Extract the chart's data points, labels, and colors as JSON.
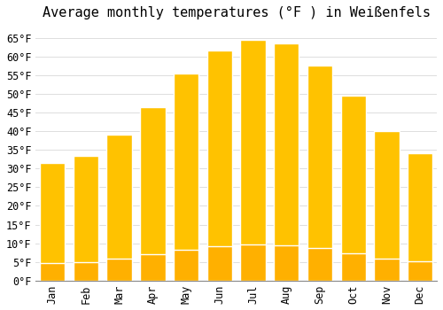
{
  "title": "Average monthly temperatures (°F ) in Weißenfels",
  "months": [
    "Jan",
    "Feb",
    "Mar",
    "Apr",
    "May",
    "Jun",
    "Jul",
    "Aug",
    "Sep",
    "Oct",
    "Nov",
    "Dec"
  ],
  "values": [
    31.5,
    33.5,
    39.0,
    46.5,
    55.5,
    61.5,
    64.5,
    63.5,
    57.5,
    49.5,
    40.0,
    34.0
  ],
  "bar_color_top": "#FFC200",
  "bar_color_bottom": "#FFB000",
  "bar_edge_color": "#FFFFFF",
  "background_color": "#FFFFFF",
  "grid_color": "#DDDDDD",
  "ylim": [
    0,
    68
  ],
  "yticks": [
    0,
    5,
    10,
    15,
    20,
    25,
    30,
    35,
    40,
    45,
    50,
    55,
    60,
    65
  ],
  "title_fontsize": 11,
  "tick_fontsize": 8.5,
  "bar_width": 0.75
}
